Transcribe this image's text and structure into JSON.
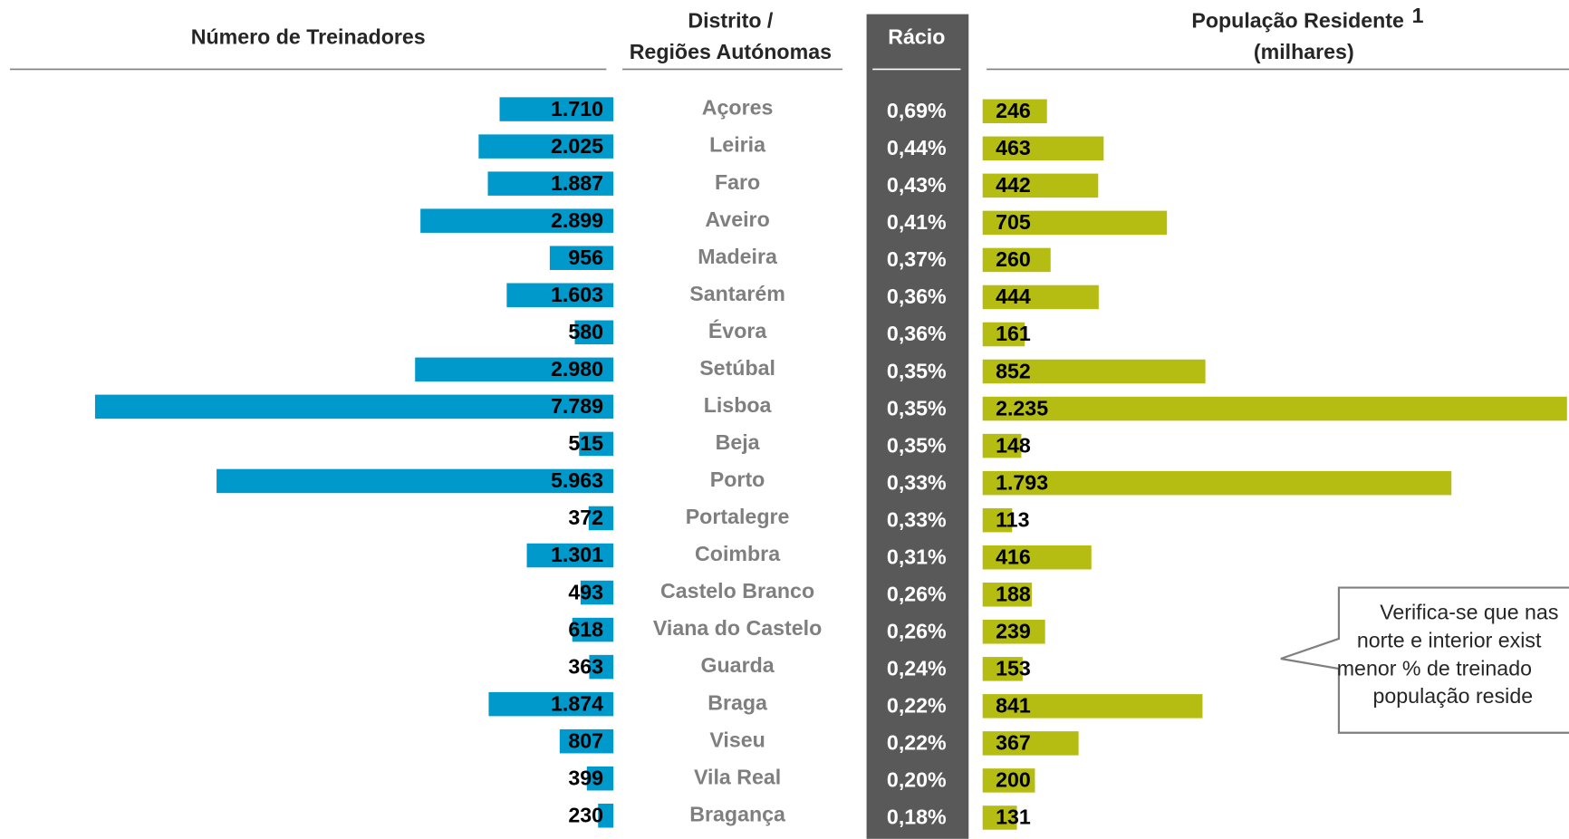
{
  "chart_data": {
    "type": "butterfly",
    "category_header": [
      "Distrito /",
      "Regiões Autónomas"
    ],
    "categories": [
      "Açores",
      "Leiria",
      "Faro",
      "Aveiro",
      "Madeira",
      "Santarém",
      "Évora",
      "Setúbal",
      "Lisboa",
      "Beja",
      "Porto",
      "Portalegre",
      "Coimbra",
      "Castelo Branco",
      "Viana do Castelo",
      "Guarda",
      "Braga",
      "Viseu",
      "Vila Real",
      "Bragança"
    ],
    "series": [
      {
        "name": "Número de Treinadores",
        "color": "#0099cc",
        "values": [
          1710,
          2025,
          1887,
          2899,
          956,
          1603,
          580,
          2980,
          7789,
          515,
          5963,
          372,
          1301,
          493,
          618,
          363,
          1874,
          807,
          399,
          230
        ],
        "value_labels": [
          "1.710",
          "2.025",
          "1.887",
          "2.899",
          "956",
          "1.603",
          "580",
          "2.980",
          "7.789",
          "515",
          "5.963",
          "372",
          "1.301",
          "493",
          "618",
          "363",
          "1.874",
          "807",
          "399",
          "230"
        ]
      },
      {
        "name": "População Residente",
        "footnote": "1",
        "unit": "(milhares)",
        "color": "#b5bd12",
        "values": [
          246,
          463,
          442,
          705,
          260,
          444,
          161,
          852,
          2235,
          148,
          1793,
          113,
          416,
          188,
          239,
          153,
          841,
          367,
          200,
          131
        ],
        "value_labels": [
          "246",
          "463",
          "442",
          "705",
          "260",
          "444",
          "161",
          "852",
          "2.235",
          "148",
          "1.793",
          "113",
          "416",
          "188",
          "239",
          "153",
          "841",
          "367",
          "200",
          "131"
        ]
      }
    ],
    "ratio": {
      "name": "Rácio",
      "color": "#595959",
      "values": [
        0.69,
        0.44,
        0.43,
        0.41,
        0.37,
        0.36,
        0.36,
        0.35,
        0.35,
        0.35,
        0.33,
        0.33,
        0.31,
        0.26,
        0.26,
        0.24,
        0.22,
        0.22,
        0.2,
        0.18
      ],
      "value_labels": [
        "0,69%",
        "0,44%",
        "0,43%",
        "0,41%",
        "0,37%",
        "0,36%",
        "0,36%",
        "0,35%",
        "0,35%",
        "0,35%",
        "0,33%",
        "0,33%",
        "0,31%",
        "0,26%",
        "0,26%",
        "0,24%",
        "0,22%",
        "0,22%",
        "0,20%",
        "0,18%"
      ]
    },
    "annotation": [
      "Verifica-se que nas",
      "norte e interior exist",
      "menor % de treinado",
      "população reside"
    ]
  }
}
